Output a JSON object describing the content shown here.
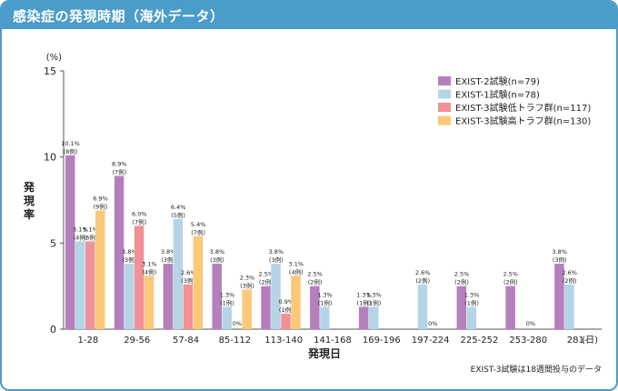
{
  "title": "感染症の発現時期（海外データ）",
  "footnote": "EXIST-3試験は18週間投与のデータ",
  "colors": {
    "header": "#4a9cc9",
    "series": [
      "#b57fbd",
      "#b5d5e6",
      "#ef9197",
      "#f9c879"
    ]
  },
  "chart_data": {
    "type": "bar",
    "title": "感染症の発現時期（海外データ）",
    "ylabel": "発現率",
    "yunit": "(%)",
    "xlabel": "発現日",
    "xunit": "(日)",
    "ylim": [
      0,
      15
    ],
    "yticks": [
      0,
      5,
      10,
      15
    ],
    "legend_position": "top-right",
    "categories": [
      "1-28",
      "29-56",
      "57-84",
      "85-112",
      "113-140",
      "141-168",
      "169-196",
      "197-224",
      "225-252",
      "253-280",
      "281-"
    ],
    "series": [
      {
        "name": "EXIST-2試験(n=79)",
        "values": [
          10.1,
          8.9,
          3.8,
          3.8,
          2.5,
          2.5,
          1.3,
          null,
          2.5,
          2.5,
          3.8
        ],
        "labels": [
          "10.1%",
          "8.9%",
          "3.8%",
          "3.8%",
          "2.5%",
          "2.5%",
          "1.3%",
          null,
          "2.5%",
          "2.5%",
          "3.8%"
        ],
        "counts": [
          "(8例)",
          "(7例)",
          "(3例)",
          "(3例)",
          "(2例)",
          "(2例)",
          "(1例)",
          null,
          "(2例)",
          "(2例)",
          "(3例)"
        ]
      },
      {
        "name": "EXIST-1試験(n=78)",
        "values": [
          5.1,
          3.8,
          6.4,
          1.3,
          3.8,
          1.3,
          1.3,
          2.6,
          1.3,
          null,
          2.6
        ],
        "labels": [
          "5.1%",
          "3.8%",
          "6.4%",
          "1.3%",
          "3.8%",
          "1.3%",
          "1.3%",
          "2.6%",
          "1.3%",
          null,
          "2.6%"
        ],
        "counts": [
          "(4例)",
          "(3例)",
          "(5例)",
          "(1例)",
          "(3例)",
          "(1例)",
          "(1例)",
          "(2例)",
          "(1例)",
          null,
          "(2例)"
        ]
      },
      {
        "name": "EXIST-3試験低トラフ群(n=117)",
        "values": [
          5.1,
          6.0,
          2.6,
          0,
          0.9,
          null,
          null,
          0,
          null,
          0,
          null
        ],
        "labels": [
          "5.1%",
          "6.0%",
          "2.6%",
          "0%",
          "0.9%",
          null,
          null,
          "0%",
          null,
          "0%",
          null
        ],
        "counts": [
          "(6例)",
          "(7例)",
          "(3例)",
          null,
          "(1例)",
          null,
          null,
          null,
          null,
          null,
          null
        ]
      },
      {
        "name": "EXIST-3試験高トラフ群(n=130)",
        "values": [
          6.9,
          3.1,
          5.4,
          2.3,
          3.1,
          null,
          null,
          null,
          null,
          null,
          null
        ],
        "labels": [
          "6.9%",
          "3.1%",
          "5.4%",
          "2.3%",
          "3.1%",
          null,
          null,
          null,
          null,
          null,
          null
        ],
        "counts": [
          "(9例)",
          "(4例)",
          "(7例)",
          "(3例)",
          "(4例)",
          null,
          null,
          null,
          null,
          null,
          null
        ]
      }
    ]
  }
}
